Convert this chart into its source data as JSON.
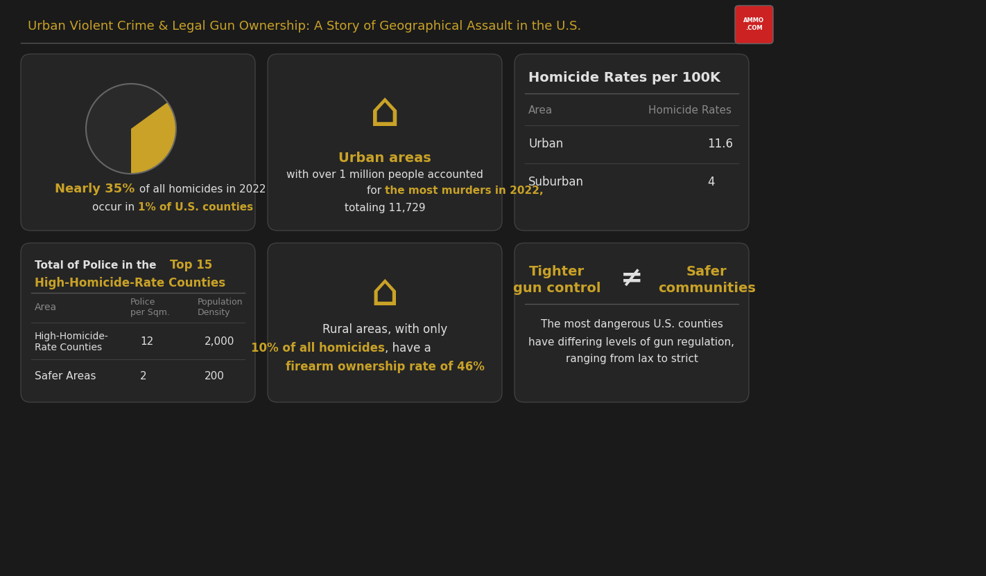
{
  "bg_color": "#1a1a1a",
  "card_color": "#252525",
  "gold": "#c9a227",
  "white": "#e0e0e0",
  "gray": "#888888",
  "title": "Urban Violent Crime & Legal Gun Ownership: A Story of Geographical Assault in the U.S.",
  "card1": {
    "pie_pct": 35,
    "text1_bold": "Nearly 35%",
    "text1_rest": " of all homicides in 2022",
    "text2_rest": "occur in ",
    "text2_bold": "1% of U.S. counties"
  },
  "card2": {
    "line1_bold": "Urban areas",
    "line2": "with over 1 million people accounted",
    "line3_rest": "for ",
    "line3_bold": "the most murders in 2022,",
    "line4": "totaling 11,729"
  },
  "card3": {
    "title": "Homicide Rates per 100K",
    "col1": "Area",
    "col2": "Homicide Rates",
    "row1": [
      "Urban",
      "11.6"
    ],
    "row2": [
      "Suburban",
      "4"
    ]
  },
  "card4": {
    "title1": "Total of Police in the ",
    "title2": "Top 15",
    "title3": "High-Homicide-Rate Counties",
    "col1": "Area",
    "col2": "Police\nper Sqm.",
    "col3": "Population\nDensity",
    "row1": [
      "High-Homicide-\nRate Counties",
      "12",
      "2,000"
    ],
    "row2": [
      "Safer Areas",
      "2",
      "200"
    ]
  },
  "card5": {
    "line1": "Rural areas, with only",
    "line2_bold": "10% of all homicides",
    "line2_rest": ", have a",
    "line3_bold": "firearm ownership rate of 46%"
  },
  "card6": {
    "title1": "Tighter",
    "title2": "gun control",
    "symbol": "≠",
    "title3": "Safer",
    "title4": "communities",
    "line1": "The most dangerous U.S. counties",
    "line2": "have differing levels of gun regulation,",
    "line3": "ranging from lax to strict"
  }
}
